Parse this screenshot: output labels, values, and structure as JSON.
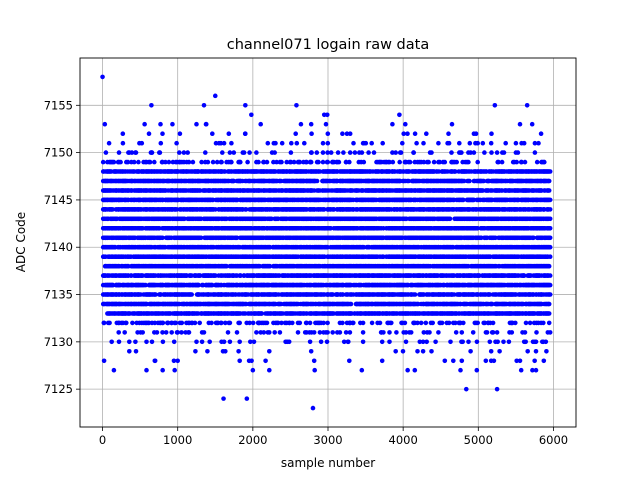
{
  "chart_data": {
    "type": "scatter",
    "title": "channel071 logain raw data",
    "xlabel": "sample number",
    "ylabel": "ADC Code",
    "xlim": [
      -300,
      6300
    ],
    "ylim": [
      7121,
      7160
    ],
    "x_ticks": [
      0,
      1000,
      2000,
      3000,
      4000,
      5000,
      6000
    ],
    "y_ticks": [
      7125,
      7130,
      7135,
      7140,
      7145,
      7150,
      7155
    ],
    "grid": true,
    "marker_color": "#0000ff",
    "sample_count": 5950,
    "core_range": [
      7133,
      7148
    ],
    "outer_range": [
      7127,
      7153
    ],
    "points": [
      {
        "x": 0,
        "y": 7158
      },
      {
        "x": 1500,
        "y": 7156
      },
      {
        "x": 650,
        "y": 7155
      },
      {
        "x": 1350,
        "y": 7155
      },
      {
        "x": 1900,
        "y": 7155
      },
      {
        "x": 2580,
        "y": 7155
      },
      {
        "x": 5220,
        "y": 7155
      },
      {
        "x": 5650,
        "y": 7155
      },
      {
        "x": 2950,
        "y": 7154
      },
      {
        "x": 2990,
        "y": 7154
      },
      {
        "x": 3950,
        "y": 7154
      },
      {
        "x": 1980,
        "y": 7154
      },
      {
        "x": 30,
        "y": 7153
      },
      {
        "x": 560,
        "y": 7153
      },
      {
        "x": 930,
        "y": 7153
      },
      {
        "x": 1250,
        "y": 7153
      },
      {
        "x": 1380,
        "y": 7153
      },
      {
        "x": 2640,
        "y": 7153
      },
      {
        "x": 4650,
        "y": 7153
      },
      {
        "x": 1610,
        "y": 7124
      },
      {
        "x": 1920,
        "y": 7124
      },
      {
        "x": 2800,
        "y": 7123
      },
      {
        "x": 4840,
        "y": 7125
      },
      {
        "x": 5250,
        "y": 7125
      },
      {
        "x": 800,
        "y": 7127
      },
      {
        "x": 960,
        "y": 7127
      },
      {
        "x": 2000,
        "y": 7127
      },
      {
        "x": 3450,
        "y": 7127
      },
      {
        "x": 4060,
        "y": 7127
      },
      {
        "x": 4980,
        "y": 7127
      },
      {
        "x": 5720,
        "y": 7127
      },
      {
        "x": 950,
        "y": 7128
      },
      {
        "x": 1950,
        "y": 7128
      },
      {
        "x": 700,
        "y": 7128
      },
      {
        "x": 5100,
        "y": 7128
      },
      {
        "x": 5750,
        "y": 7128
      }
    ]
  }
}
